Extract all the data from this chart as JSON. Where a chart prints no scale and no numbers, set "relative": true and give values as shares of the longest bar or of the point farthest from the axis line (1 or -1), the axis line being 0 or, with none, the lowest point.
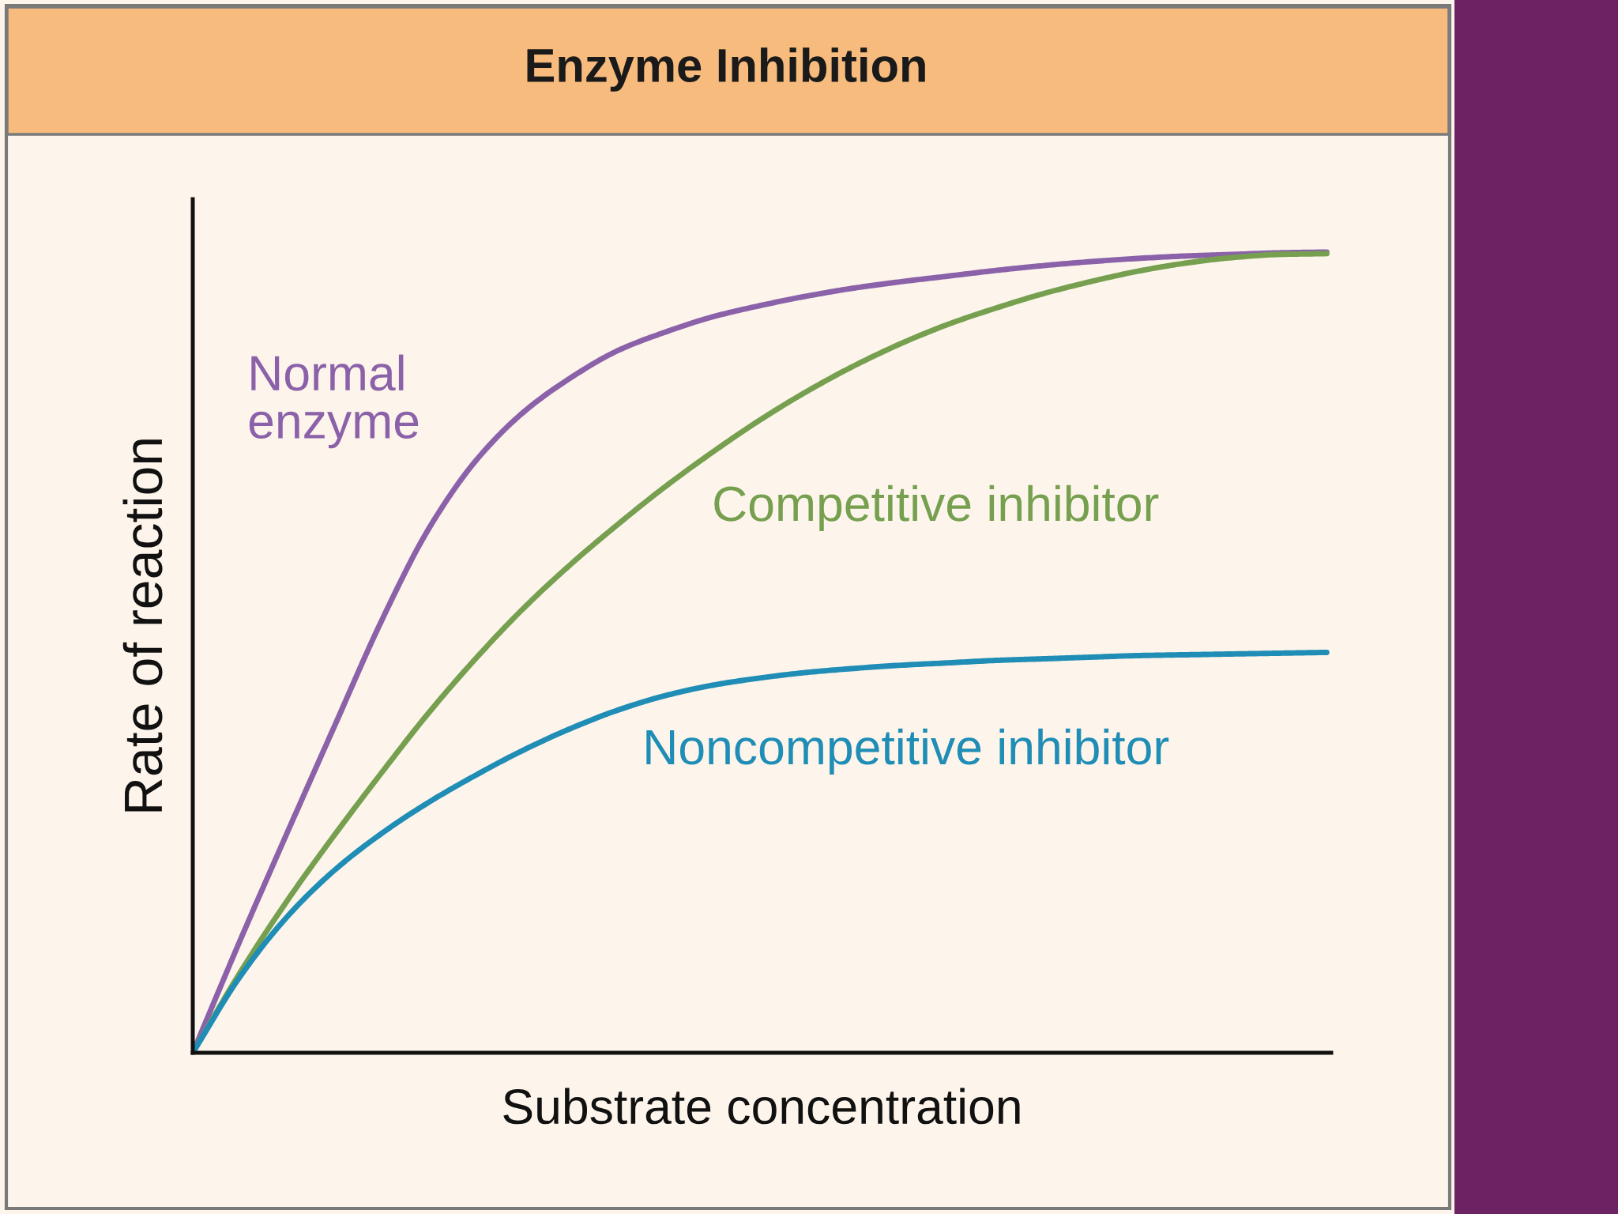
{
  "chart_data": {
    "type": "line",
    "title": "Enzyme Inhibition",
    "xlabel": "Substrate concentration",
    "ylabel": "Rate of reaction",
    "relative": true,
    "categories": [
      null,
      null,
      null,
      null,
      null,
      null,
      null,
      null,
      null,
      null,
      null,
      null,
      null,
      null,
      null,
      null,
      null,
      null,
      null,
      null,
      null,
      null,
      null,
      null,
      null
    ],
    "series": [
      {
        "name": "Normal\nenzyme",
        "color": "#8b62a9",
        "values": [
          0,
          0.14,
          0.275,
          0.408,
          0.54,
          0.655,
          0.74,
          0.8,
          0.843,
          0.877,
          0.9,
          0.919,
          0.933,
          0.945,
          0.955,
          0.963,
          0.97,
          0.977,
          0.983,
          0.988,
          0.992,
          0.995,
          0.997,
          0.999,
          1.0
        ]
      },
      {
        "name": "Competitive inhibitor",
        "color": "#76a04f",
        "values": [
          0,
          0.1,
          0.19,
          0.272,
          0.35,
          0.425,
          0.493,
          0.555,
          0.61,
          0.66,
          0.707,
          0.75,
          0.79,
          0.826,
          0.858,
          0.886,
          0.91,
          0.93,
          0.948,
          0.963,
          0.976,
          0.986,
          0.993,
          0.997,
          0.998
        ]
      },
      {
        "name": "Noncompetitive inhibitor",
        "color": "#1f8db5",
        "values": [
          0,
          0.095,
          0.17,
          0.228,
          0.274,
          0.313,
          0.347,
          0.378,
          0.405,
          0.428,
          0.446,
          0.459,
          0.468,
          0.475,
          0.48,
          0.484,
          0.487,
          0.49,
          0.492,
          0.494,
          0.496,
          0.497,
          0.498,
          0.499,
          0.5
        ]
      }
    ],
    "legend": false,
    "grid": false,
    "tick_labels": false
  }
}
